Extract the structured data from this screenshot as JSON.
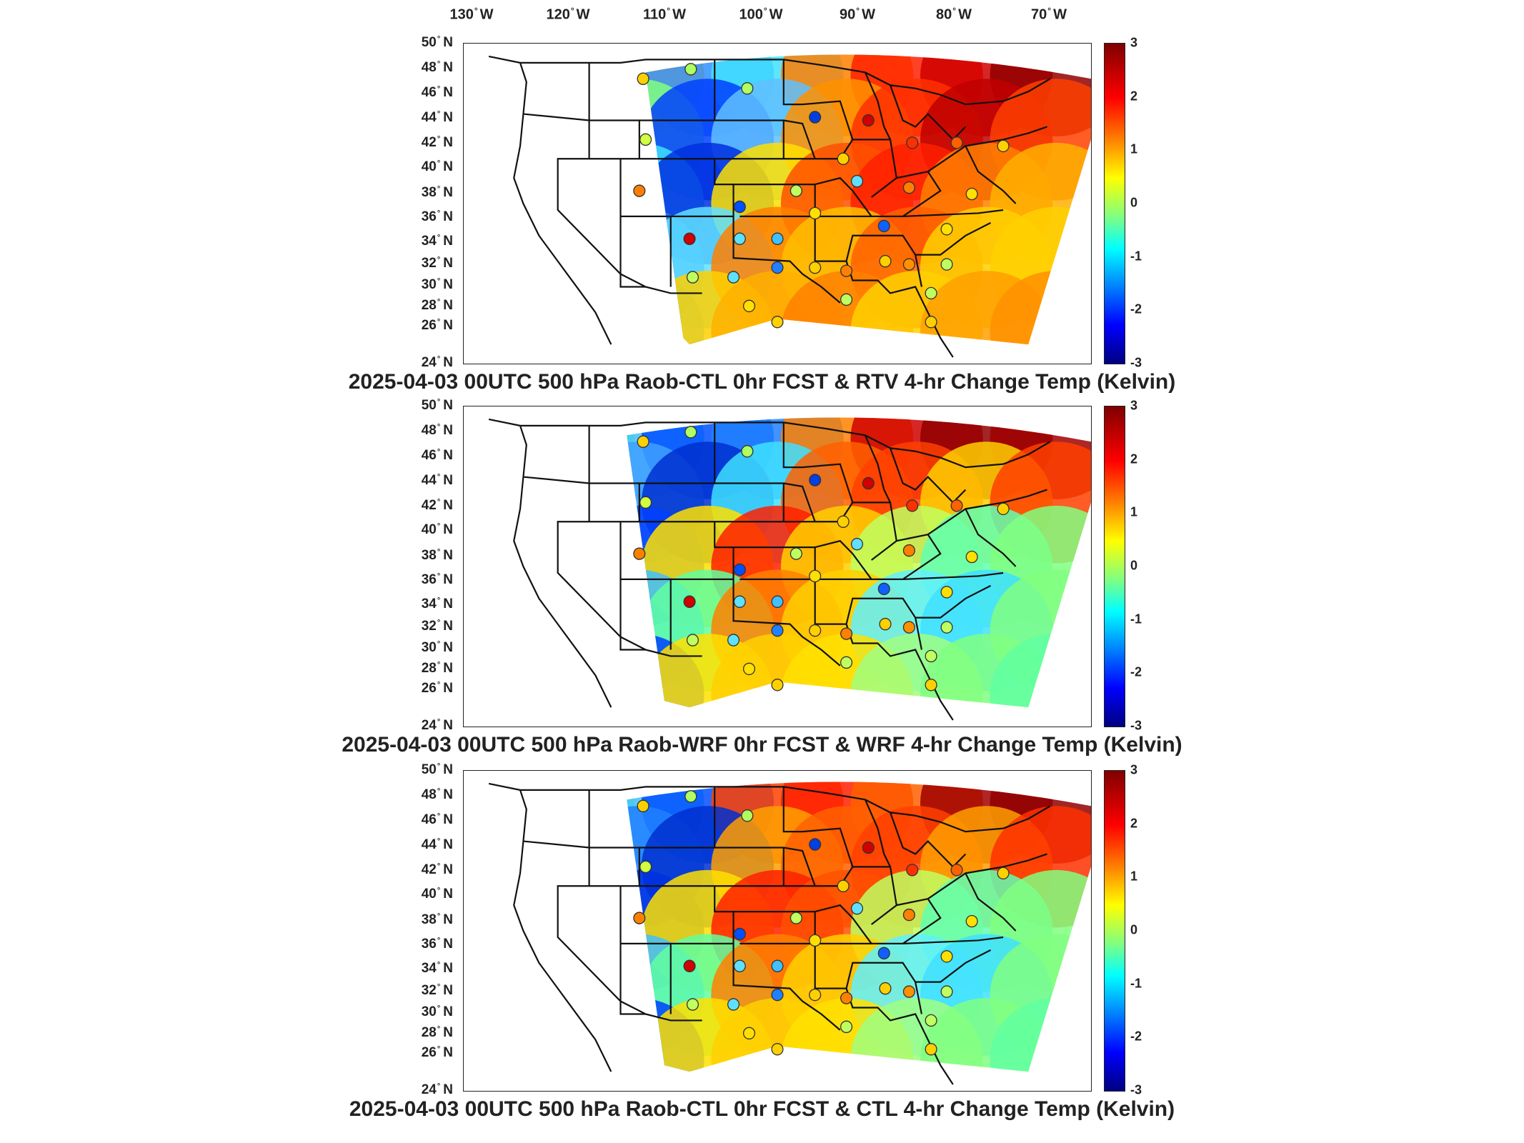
{
  "lon_labels": [
    "130",
    "120",
    "110",
    "100",
    "90",
    "80",
    "70"
  ],
  "lon_hemisphere": "W",
  "lat_labels": [
    "50",
    "48",
    "46",
    "44",
    "42",
    "40",
    "38",
    "36",
    "34",
    "32",
    "30",
    "28",
    "26",
    "24"
  ],
  "lat_hemisphere": "N",
  "colorbar": {
    "ticks": [
      "3",
      "2",
      "1",
      "0",
      "-1",
      "-2",
      "-3"
    ],
    "range": [
      -3,
      3
    ],
    "colormap": "jet"
  },
  "panels": [
    {
      "title": "2025-04-03 00UTC 500 hPa Raob-CTL 0hr FCST & RTV 4-hr Change Temp (Kelvin)"
    },
    {
      "title": "2025-04-03 00UTC 500 hPa Raob-WRF 0hr FCST & WRF 4-hr Change Temp (Kelvin)"
    },
    {
      "title": "2025-04-03 00UTC 500 hPa Raob-CTL 0hr FCST & CTL 4-hr Change Temp (Kelvin)"
    }
  ],
  "colors": {
    "dark_red": "#800000",
    "red": "#ff2000",
    "orange": "#ff8c00",
    "yellow": "#ffff00",
    "green": "#80ff80",
    "cyan": "#00e0ff",
    "blue": "#0050ff",
    "dark_blue": "#000090"
  }
}
